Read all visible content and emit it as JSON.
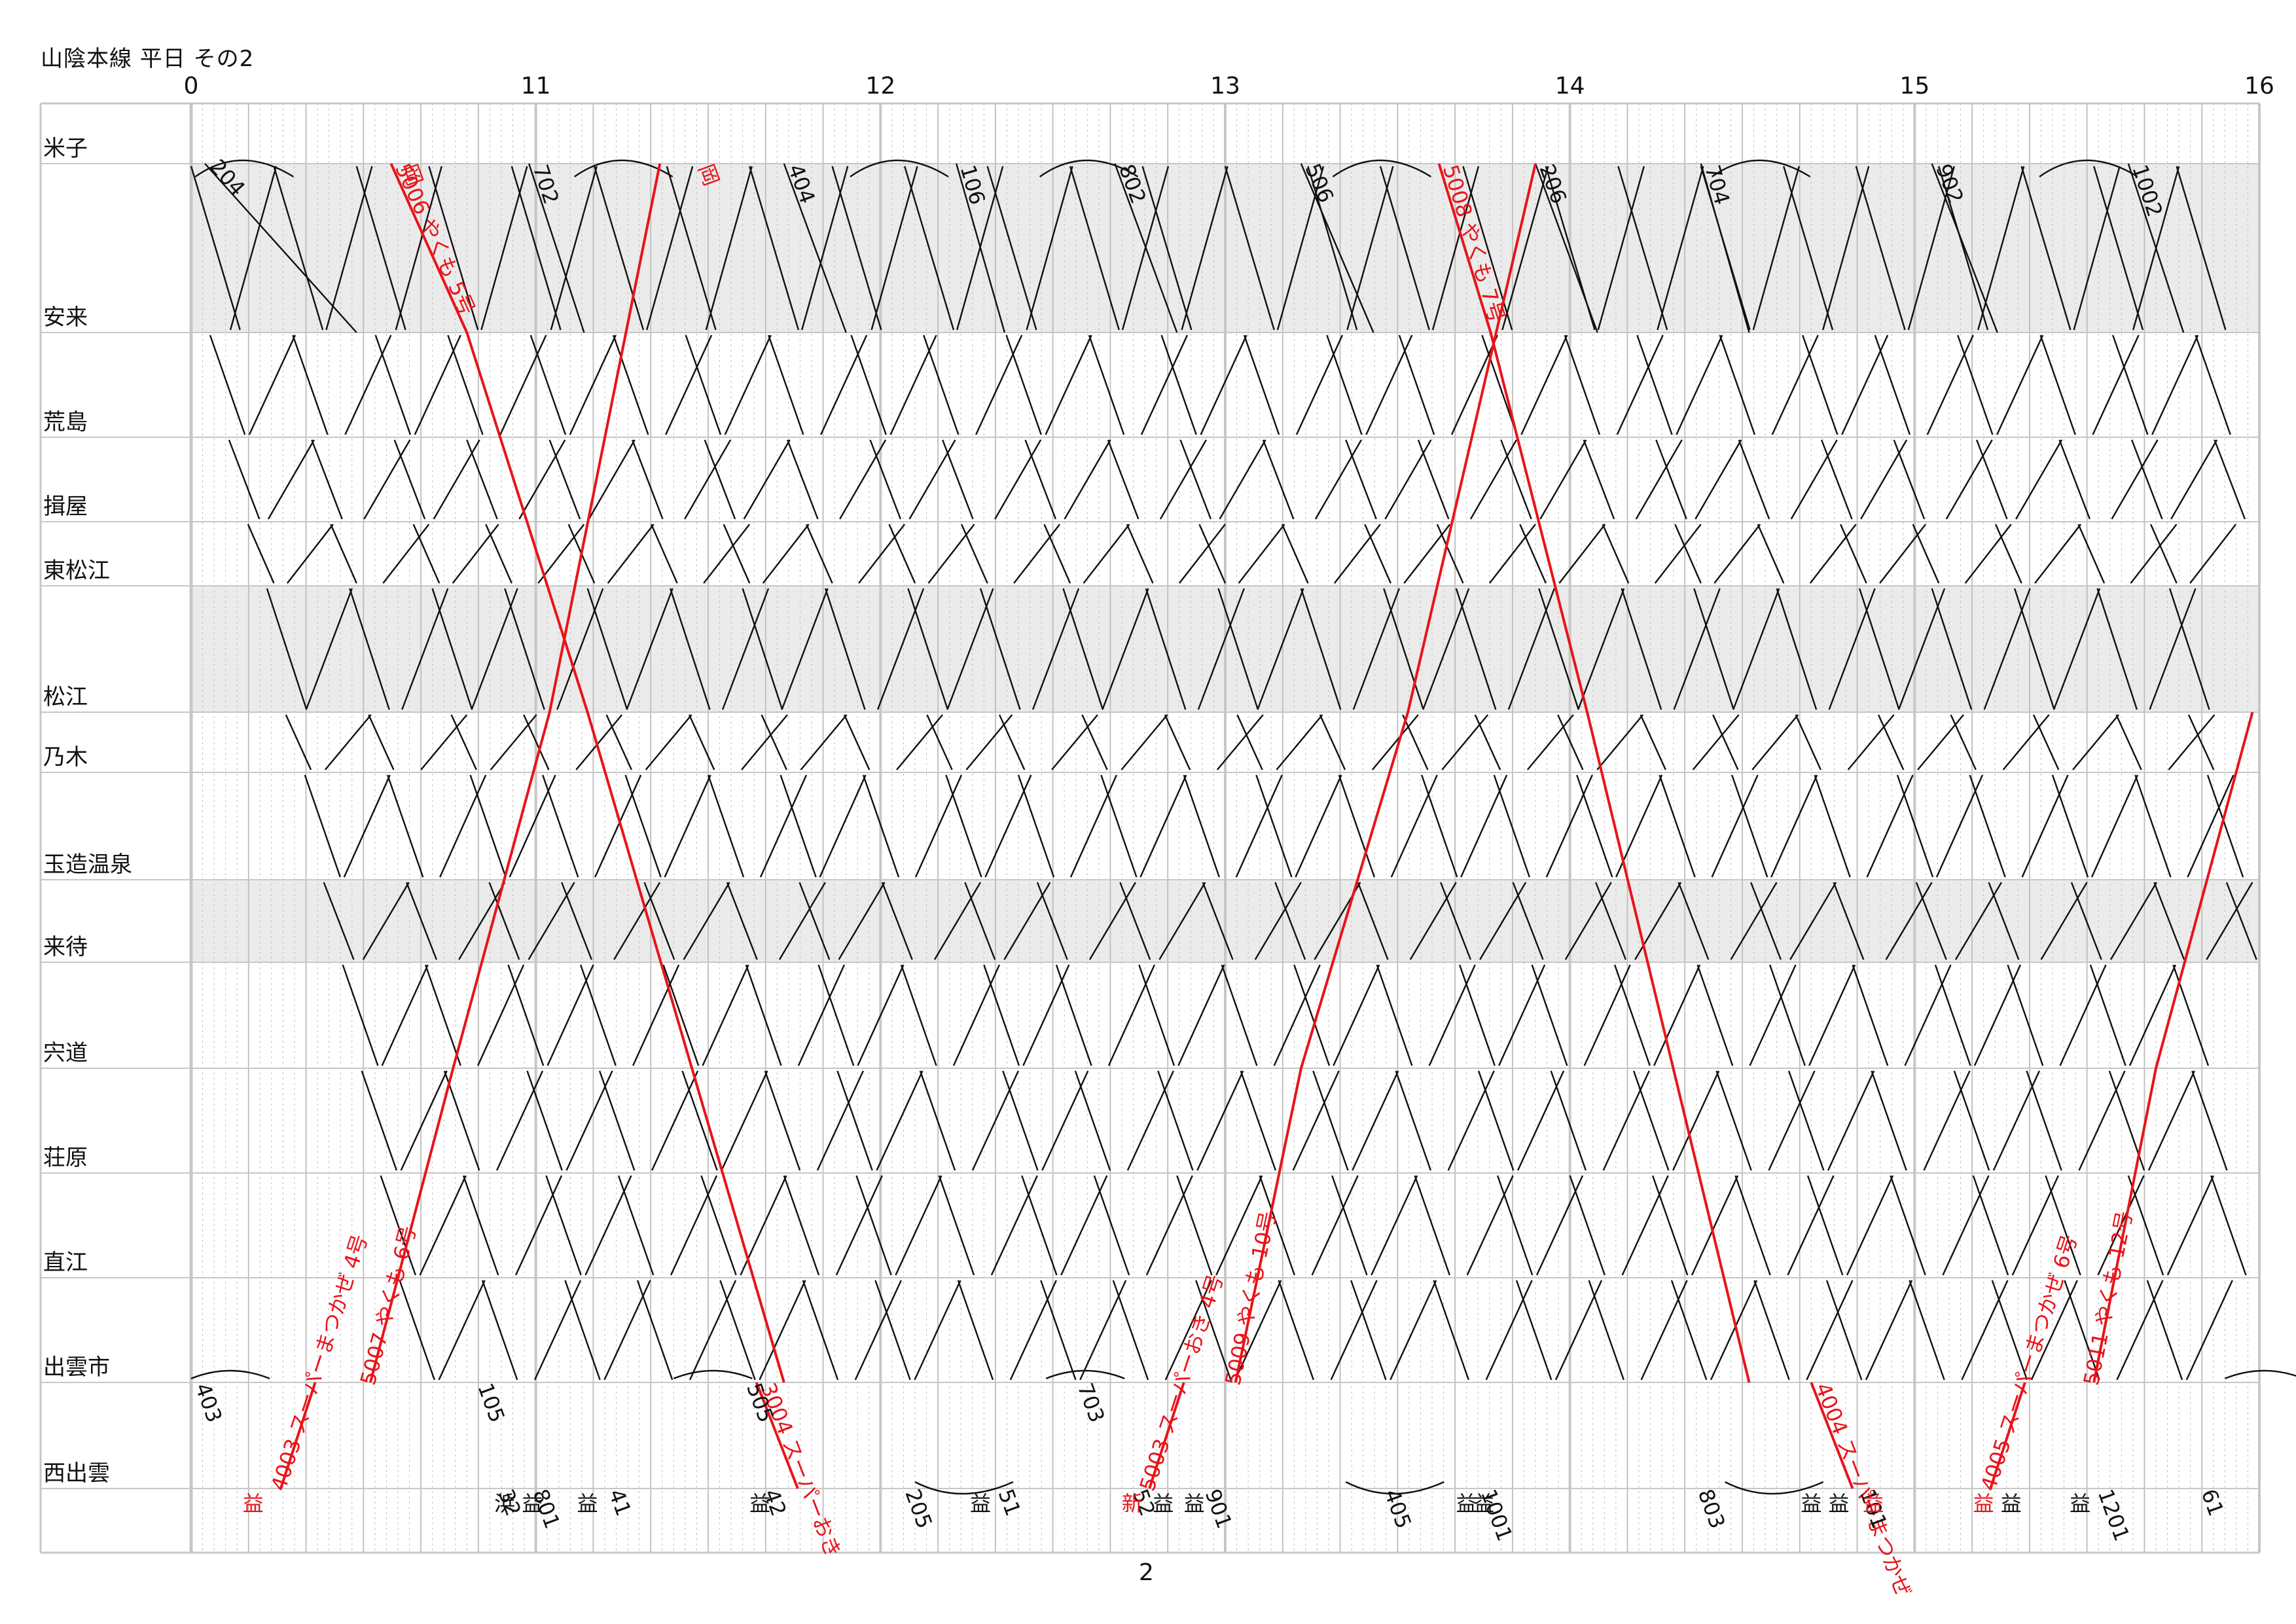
{
  "title": "山陰本線 平日 その2",
  "page_number": "2",
  "colors": {
    "express": "#e8141a",
    "local": "#111111",
    "band": "#ebebeb",
    "grid": "#c7c7c7",
    "minute_grid": "#bdbdbd"
  },
  "chart_data": {
    "type": "line",
    "x_axis": {
      "range": [
        10,
        16
      ],
      "tick_labels": [
        "0",
        "11",
        "12",
        "13",
        "14",
        "15",
        "16"
      ]
    },
    "stations": [
      "米子",
      "安来",
      "荒島",
      "揖屋",
      "東松江",
      "松江",
      "乃木",
      "玉造温泉",
      "来待",
      "宍道",
      "荘原",
      "直江",
      "出雲市",
      "西出雲"
    ],
    "shaded_sections": [
      [
        "米子",
        "安来"
      ],
      [
        "東松江",
        "松江"
      ],
      [
        "玉造温泉",
        "来待"
      ]
    ],
    "series": [
      {
        "color": "local",
        "label": "204",
        "x": [
          10.04,
          10.48
        ],
        "y": [
          "米子",
          "安来"
        ]
      },
      {
        "color": "local",
        "label": "702",
        "x": [
          10.98,
          11.14
        ],
        "y": [
          "米子",
          "安来"
        ]
      },
      {
        "color": "local",
        "label": "404",
        "x": [
          11.72,
          11.9
        ],
        "y": [
          "米子",
          "安来"
        ]
      },
      {
        "color": "local",
        "label": "106",
        "x": [
          12.22,
          12.36
        ],
        "y": [
          "米子",
          "安来"
        ]
      },
      {
        "color": "local",
        "label": "802",
        "x": [
          12.68,
          12.86
        ],
        "y": [
          "米子",
          "安来"
        ]
      },
      {
        "color": "local",
        "label": "506",
        "x": [
          13.22,
          13.43
        ],
        "y": [
          "米子",
          "安来"
        ]
      },
      {
        "color": "local",
        "label": "206",
        "x": [
          13.9,
          14.08
        ],
        "y": [
          "米子",
          "安来"
        ]
      },
      {
        "color": "local",
        "label": "704",
        "x": [
          14.38,
          14.52
        ],
        "y": [
          "米子",
          "安来"
        ]
      },
      {
        "color": "local",
        "label": "902",
        "x": [
          15.05,
          15.24
        ],
        "y": [
          "米子",
          "安来"
        ]
      },
      {
        "color": "local",
        "label": "1002",
        "x": [
          15.62,
          15.78
        ],
        "y": [
          "米子",
          "安来"
        ]
      },
      {
        "color": "express",
        "label": "岡",
        "x": [
          10.6
        ],
        "y": [
          "米子"
        ]
      },
      {
        "color": "express",
        "label": "5006 やくも 5号",
        "x": [
          10.58,
          10.8,
          11.15,
          11.72
        ],
        "y": [
          "米子",
          "安来",
          "松江",
          "出雲市"
        ]
      },
      {
        "color": "express",
        "label": "岡",
        "x": [
          11.46
        ],
        "y": [
          "米子"
        ]
      },
      {
        "color": "express",
        "label": "5007 やくも 6号",
        "x": [
          10.52,
          10.76,
          11.04,
          11.36
        ],
        "y": [
          "出雲市",
          "宍道",
          "松江",
          "米子"
        ]
      },
      {
        "color": "express",
        "label": "5008 やくも 7号",
        "x": [
          13.62,
          13.77,
          14.05,
          14.52
        ],
        "y": [
          "米子",
          "安来",
          "松江",
          "出雲市"
        ]
      },
      {
        "color": "express",
        "label": "5009 やくも 10号",
        "x": [
          13.03,
          13.22,
          13.53,
          13.9
        ],
        "y": [
          "出雲市",
          "宍道",
          "松江",
          "米子"
        ]
      },
      {
        "color": "express",
        "label": "5011 やくも 12号",
        "x": [
          15.52,
          15.7,
          15.98
        ],
        "y": [
          "出雲市",
          "宍道",
          "松江"
        ]
      },
      {
        "color": "express",
        "label": "4003 スーパーまつかぜ 4号",
        "x": [
          10.26,
          10.36
        ],
        "y": [
          "西出雲",
          "出雲市"
        ]
      },
      {
        "color": "express",
        "label": "3004 スーパーおき",
        "x": [
          11.64,
          11.76
        ],
        "y": [
          "出雲市",
          "西出雲"
        ]
      },
      {
        "color": "express",
        "label": "5003 スーパーおき 4号",
        "x": [
          12.78,
          12.88
        ],
        "y": [
          "西出雲",
          "出雲市"
        ]
      },
      {
        "color": "express",
        "label": "4004 スーパーまつかぜ",
        "x": [
          14.7,
          14.82
        ],
        "y": [
          "出雲市",
          "西出雲"
        ]
      },
      {
        "color": "express",
        "label": "4005 スーパーまつかぜ 6号",
        "x": [
          15.22,
          15.32
        ],
        "y": [
          "西出雲",
          "出雲市"
        ]
      },
      {
        "color": "local",
        "label": "403",
        "x": [
          10.0
        ],
        "y": [
          "出雲市"
        ]
      },
      {
        "color": "local",
        "label": "105",
        "x": [
          10.82
        ],
        "y": [
          "出雲市"
        ]
      },
      {
        "color": "local",
        "label": "32",
        "x": [
          10.88
        ],
        "y": [
          "西出雲"
        ]
      },
      {
        "color": "local",
        "label": "801",
        "x": [
          10.98
        ],
        "y": [
          "西出雲"
        ]
      },
      {
        "color": "local",
        "label": "41",
        "x": [
          11.2
        ],
        "y": [
          "西出雲"
        ]
      },
      {
        "color": "local",
        "label": "505",
        "x": [
          11.6
        ],
        "y": [
          "出雲市"
        ]
      },
      {
        "color": "local",
        "label": "42",
        "x": [
          11.65
        ],
        "y": [
          "西出雲"
        ]
      },
      {
        "color": "local",
        "label": "205",
        "x": [
          12.06
        ],
        "y": [
          "西出雲"
        ]
      },
      {
        "color": "local",
        "label": "51",
        "x": [
          12.33
        ],
        "y": [
          "西出雲"
        ]
      },
      {
        "color": "local",
        "label": "703",
        "x": [
          12.56
        ],
        "y": [
          "出雲市"
        ]
      },
      {
        "color": "local",
        "label": "52",
        "x": [
          12.72
        ],
        "y": [
          "西出雲"
        ]
      },
      {
        "color": "local",
        "label": "901",
        "x": [
          12.93
        ],
        "y": [
          "西出雲"
        ]
      },
      {
        "color": "local",
        "label": "405",
        "x": [
          13.45
        ],
        "y": [
          "西出雲"
        ]
      },
      {
        "color": "local",
        "label": "1001",
        "x": [
          13.73
        ],
        "y": [
          "西出雲"
        ]
      },
      {
        "color": "local",
        "label": "803",
        "x": [
          14.36
        ],
        "y": [
          "西出雲"
        ]
      },
      {
        "color": "local",
        "label": "101",
        "x": [
          14.83
        ],
        "y": [
          "西出雲"
        ]
      },
      {
        "color": "local",
        "label": "1201",
        "x": [
          15.52
        ],
        "y": [
          "西出雲"
        ]
      },
      {
        "color": "local",
        "label": "61",
        "x": [
          15.82
        ],
        "y": [
          "西出雲"
        ]
      }
    ],
    "terminal_marks": [
      {
        "text": "益",
        "x": 10.18,
        "color": "express"
      },
      {
        "text": "浜",
        "x": 10.91,
        "color": "local"
      },
      {
        "text": "益",
        "x": 10.99,
        "color": "local"
      },
      {
        "text": "益",
        "x": 11.15,
        "color": "local"
      },
      {
        "text": "益",
        "x": 11.65,
        "color": "local"
      },
      {
        "text": "益",
        "x": 12.29,
        "color": "local"
      },
      {
        "text": "新",
        "x": 12.73,
        "color": "express"
      },
      {
        "text": "益",
        "x": 12.82,
        "color": "local"
      },
      {
        "text": "益",
        "x": 12.91,
        "color": "local"
      },
      {
        "text": "益",
        "x": 13.7,
        "color": "local"
      },
      {
        "text": "益",
        "x": 13.75,
        "color": "local"
      },
      {
        "text": "益",
        "x": 14.7,
        "color": "local"
      },
      {
        "text": "益",
        "x": 14.78,
        "color": "local"
      },
      {
        "text": "益",
        "x": 14.88,
        "color": "express"
      },
      {
        "text": "益",
        "x": 15.2,
        "color": "express"
      },
      {
        "text": "益",
        "x": 15.28,
        "color": "local"
      },
      {
        "text": "益",
        "x": 15.48,
        "color": "local"
      }
    ],
    "grid": true
  }
}
